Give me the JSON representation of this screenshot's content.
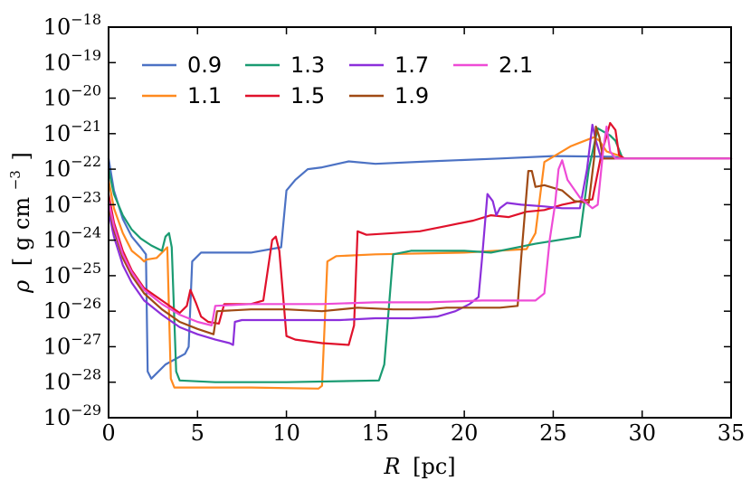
{
  "chart_data": {
    "type": "line",
    "title": "",
    "xlabel": {
      "italic": "R",
      "unit": "[pc]"
    },
    "ylabel": {
      "italic": "ρ",
      "unit": "[ g cm",
      "unit_exp": "−3",
      "unit_close": "]"
    },
    "xlim": [
      0,
      35
    ],
    "ylim_log10": [
      -29,
      -18
    ],
    "x_ticks": [
      0,
      5,
      10,
      15,
      20,
      25,
      30,
      35
    ],
    "y_ticks": [
      {
        "base": "10",
        "exp": "−18",
        "value": -18
      },
      {
        "base": "10",
        "exp": "−19",
        "value": -19
      },
      {
        "base": "10",
        "exp": "−20",
        "value": -20
      },
      {
        "base": "10",
        "exp": "−21",
        "value": -21
      },
      {
        "base": "10",
        "exp": "−22",
        "value": -22
      },
      {
        "base": "10",
        "exp": "−23",
        "value": -23
      },
      {
        "base": "10",
        "exp": "−24",
        "value": -24
      },
      {
        "base": "10",
        "exp": "−25",
        "value": -25
      },
      {
        "base": "10",
        "exp": "−26",
        "value": -26
      },
      {
        "base": "10",
        "exp": "−27",
        "value": -27
      },
      {
        "base": "10",
        "exp": "−28",
        "value": -28
      },
      {
        "base": "10",
        "exp": "−29",
        "value": -29
      }
    ],
    "legend_location": "top-left",
    "legend_order": [
      "0.9",
      "1.3",
      "1.7",
      "2.1",
      "1.1",
      "1.5",
      "1.9"
    ],
    "series": [
      {
        "name": "0.9",
        "color": "#4c72c4",
        "points": [
          [
            0,
            -21.7
          ],
          [
            0.3,
            -22.6
          ],
          [
            0.8,
            -23.4
          ],
          [
            1.3,
            -23.9
          ],
          [
            1.8,
            -24.2
          ],
          [
            2.1,
            -24.4
          ],
          [
            2.2,
            -27.7
          ],
          [
            2.4,
            -27.9
          ],
          [
            3.2,
            -27.5
          ],
          [
            4.3,
            -27.2
          ],
          [
            4.5,
            -27.0
          ],
          [
            4.7,
            -24.6
          ],
          [
            5.2,
            -24.35
          ],
          [
            8,
            -24.35
          ],
          [
            9.7,
            -24.2
          ],
          [
            10,
            -22.6
          ],
          [
            10.5,
            -22.3
          ],
          [
            11.2,
            -22.0
          ],
          [
            12,
            -21.95
          ],
          [
            13.5,
            -21.78
          ],
          [
            15,
            -21.85
          ],
          [
            18,
            -21.78
          ],
          [
            22,
            -21.7
          ],
          [
            25,
            -21.63
          ],
          [
            28.4,
            -21.65
          ],
          [
            29,
            -21.7
          ],
          [
            35,
            -21.7
          ]
        ]
      },
      {
        "name": "1.1",
        "color": "#ff8a1f",
        "points": [
          [
            0,
            -22.3
          ],
          [
            0.3,
            -23.1
          ],
          [
            0.8,
            -23.8
          ],
          [
            1.3,
            -24.3
          ],
          [
            1.8,
            -24.5
          ],
          [
            2.0,
            -24.6
          ],
          [
            2.1,
            -24.55
          ],
          [
            2.7,
            -24.5
          ],
          [
            3.3,
            -24.2
          ],
          [
            3.5,
            -27.9
          ],
          [
            3.7,
            -28.15
          ],
          [
            5,
            -28.15
          ],
          [
            8,
            -28.15
          ],
          [
            11.8,
            -28.18
          ],
          [
            12.0,
            -28.1
          ],
          [
            12.3,
            -24.6
          ],
          [
            12.8,
            -24.45
          ],
          [
            15,
            -24.4
          ],
          [
            20,
            -24.35
          ],
          [
            23.5,
            -24.25
          ],
          [
            24,
            -23.8
          ],
          [
            24.5,
            -21.8
          ],
          [
            26,
            -21.35
          ],
          [
            27.3,
            -21.1
          ],
          [
            27.6,
            -21.2
          ],
          [
            28,
            -21.5
          ],
          [
            28.6,
            -21.6
          ],
          [
            29,
            -21.7
          ],
          [
            35,
            -21.7
          ]
        ]
      },
      {
        "name": "1.3",
        "color": "#1a9b72",
        "points": [
          [
            0,
            -22.0
          ],
          [
            0.3,
            -22.7
          ],
          [
            0.8,
            -23.3
          ],
          [
            1.3,
            -23.7
          ],
          [
            1.8,
            -23.95
          ],
          [
            2.4,
            -24.15
          ],
          [
            3.0,
            -24.3
          ],
          [
            3.2,
            -23.9
          ],
          [
            3.4,
            -23.8
          ],
          [
            3.55,
            -24.2
          ],
          [
            3.8,
            -27.7
          ],
          [
            4,
            -27.95
          ],
          [
            6,
            -28.0
          ],
          [
            10,
            -28.0
          ],
          [
            15.2,
            -27.95
          ],
          [
            15.5,
            -27.5
          ],
          [
            16,
            -24.4
          ],
          [
            17,
            -24.3
          ],
          [
            20,
            -24.3
          ],
          [
            21.5,
            -24.35
          ],
          [
            24,
            -24.1
          ],
          [
            26.5,
            -23.9
          ],
          [
            27,
            -22.0
          ],
          [
            27.5,
            -20.85
          ],
          [
            28.2,
            -21.05
          ],
          [
            28.5,
            -21.2
          ],
          [
            28.9,
            -21.7
          ],
          [
            35,
            -21.7
          ]
        ]
      },
      {
        "name": "1.5",
        "color": "#e0112b",
        "points": [
          [
            0,
            -22.7
          ],
          [
            0.3,
            -23.5
          ],
          [
            0.8,
            -24.3
          ],
          [
            1.3,
            -24.85
          ],
          [
            2,
            -25.35
          ],
          [
            3,
            -25.7
          ],
          [
            4,
            -26.05
          ],
          [
            4.4,
            -25.85
          ],
          [
            4.6,
            -25.4
          ],
          [
            4.9,
            -25.75
          ],
          [
            5.2,
            -26.15
          ],
          [
            5.6,
            -26.3
          ],
          [
            6.2,
            -26.35
          ],
          [
            6.5,
            -25.8
          ],
          [
            8,
            -25.8
          ],
          [
            8.7,
            -25.7
          ],
          [
            9.2,
            -24.0
          ],
          [
            9.4,
            -23.9
          ],
          [
            9.6,
            -24.3
          ],
          [
            10,
            -26.7
          ],
          [
            10.5,
            -26.8
          ],
          [
            12,
            -26.9
          ],
          [
            13.5,
            -26.95
          ],
          [
            13.8,
            -26.4
          ],
          [
            14,
            -23.75
          ],
          [
            14.5,
            -23.85
          ],
          [
            16,
            -23.8
          ],
          [
            17.5,
            -23.75
          ],
          [
            19,
            -23.6
          ],
          [
            20.5,
            -23.45
          ],
          [
            21.5,
            -23.3
          ],
          [
            22.5,
            -23.35
          ],
          [
            23.5,
            -23.2
          ],
          [
            24.5,
            -23.15
          ],
          [
            25.5,
            -23.0
          ],
          [
            26.5,
            -22.9
          ],
          [
            27.2,
            -22.85
          ],
          [
            27.7,
            -21.6
          ],
          [
            28.2,
            -20.7
          ],
          [
            28.5,
            -20.9
          ],
          [
            28.7,
            -21.6
          ],
          [
            29,
            -21.7
          ],
          [
            35,
            -21.7
          ]
        ]
      },
      {
        "name": "1.7",
        "color": "#8c2fdb",
        "points": [
          [
            0,
            -23.2
          ],
          [
            0.3,
            -23.9
          ],
          [
            0.8,
            -24.7
          ],
          [
            1.3,
            -25.2
          ],
          [
            2,
            -25.7
          ],
          [
            3,
            -26.1
          ],
          [
            4,
            -26.45
          ],
          [
            5,
            -26.65
          ],
          [
            6,
            -26.8
          ],
          [
            6.8,
            -26.9
          ],
          [
            7,
            -26.95
          ],
          [
            7.1,
            -26.3
          ],
          [
            7.5,
            -26.25
          ],
          [
            9,
            -26.25
          ],
          [
            11,
            -26.25
          ],
          [
            13,
            -26.25
          ],
          [
            15,
            -26.2
          ],
          [
            17,
            -26.2
          ],
          [
            18.5,
            -26.15
          ],
          [
            19.5,
            -26.0
          ],
          [
            20.3,
            -25.8
          ],
          [
            20.8,
            -25.6
          ],
          [
            21.0,
            -24.5
          ],
          [
            21.3,
            -22.7
          ],
          [
            21.6,
            -22.9
          ],
          [
            21.8,
            -23.3
          ],
          [
            22,
            -23.1
          ],
          [
            22.4,
            -22.95
          ],
          [
            23.2,
            -23.0
          ],
          [
            24.5,
            -23.05
          ],
          [
            25.5,
            -23.1
          ],
          [
            26.5,
            -23.1
          ],
          [
            26.9,
            -22.0
          ],
          [
            27.2,
            -20.75
          ],
          [
            27.4,
            -21.2
          ],
          [
            27.7,
            -21.7
          ],
          [
            35,
            -21.7
          ]
        ]
      },
      {
        "name": "1.9",
        "color": "#a04a14",
        "points": [
          [
            0,
            -23.0
          ],
          [
            0.3,
            -23.7
          ],
          [
            0.8,
            -24.5
          ],
          [
            1.3,
            -25.0
          ],
          [
            2,
            -25.5
          ],
          [
            3,
            -25.95
          ],
          [
            4,
            -26.3
          ],
          [
            5,
            -26.5
          ],
          [
            5.9,
            -26.65
          ],
          [
            6.1,
            -26.0
          ],
          [
            8,
            -25.95
          ],
          [
            10,
            -25.95
          ],
          [
            12,
            -26.0
          ],
          [
            14,
            -25.9
          ],
          [
            16,
            -25.95
          ],
          [
            18,
            -25.95
          ],
          [
            19,
            -25.9
          ],
          [
            20,
            -25.9
          ],
          [
            22,
            -25.9
          ],
          [
            23.0,
            -25.85
          ],
          [
            23.2,
            -24.5
          ],
          [
            23.6,
            -22.05
          ],
          [
            23.8,
            -22.05
          ],
          [
            24.0,
            -22.5
          ],
          [
            24.5,
            -22.45
          ],
          [
            25.5,
            -22.6
          ],
          [
            26.2,
            -22.9
          ],
          [
            27.0,
            -22.95
          ],
          [
            27.3,
            -21.7
          ],
          [
            27.4,
            -20.8
          ],
          [
            27.6,
            -21.1
          ],
          [
            27.8,
            -21.7
          ],
          [
            35,
            -21.7
          ]
        ]
      },
      {
        "name": "2.1",
        "color": "#ee4bd6",
        "points": [
          [
            0,
            -22.9
          ],
          [
            0.3,
            -23.6
          ],
          [
            0.8,
            -24.4
          ],
          [
            1.3,
            -24.9
          ],
          [
            2,
            -25.4
          ],
          [
            3,
            -25.8
          ],
          [
            4,
            -26.1
          ],
          [
            5,
            -26.3
          ],
          [
            5.8,
            -26.4
          ],
          [
            6.0,
            -25.85
          ],
          [
            8,
            -25.8
          ],
          [
            10,
            -25.8
          ],
          [
            12,
            -25.8
          ],
          [
            15,
            -25.75
          ],
          [
            18,
            -25.75
          ],
          [
            21,
            -25.7
          ],
          [
            24,
            -25.7
          ],
          [
            24.5,
            -25.5
          ],
          [
            24.8,
            -24.0
          ],
          [
            25.1,
            -23.0
          ],
          [
            25.3,
            -22.0
          ],
          [
            25.5,
            -21.75
          ],
          [
            25.8,
            -22.3
          ],
          [
            26.5,
            -22.8
          ],
          [
            27.2,
            -23.1
          ],
          [
            27.5,
            -23.0
          ],
          [
            27.8,
            -21.5
          ],
          [
            28.0,
            -20.8
          ],
          [
            28.2,
            -21.5
          ],
          [
            28.5,
            -21.7
          ],
          [
            35,
            -21.7
          ]
        ]
      }
    ]
  }
}
